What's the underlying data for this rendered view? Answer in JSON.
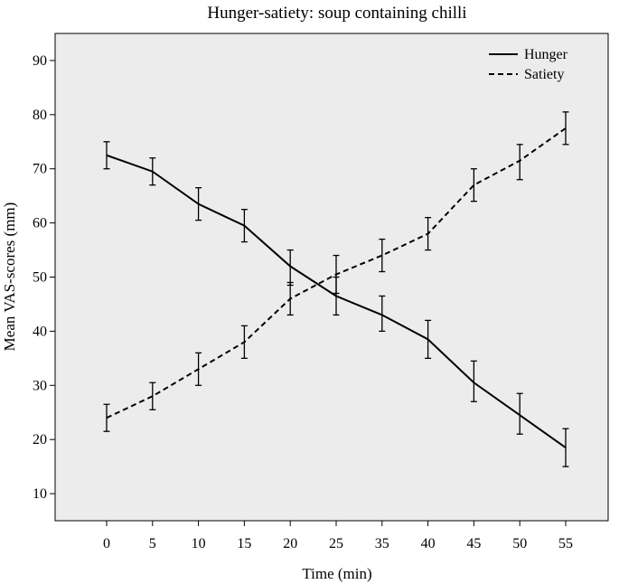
{
  "chart_data": {
    "type": "line",
    "title": "Hunger-satiety: soup containing chilli",
    "xlabel": "Time (min)",
    "ylabel": "Mean VAS-scores (mm)",
    "categories": [
      "0",
      "5",
      "10",
      "15",
      "20",
      "25",
      "35",
      "40",
      "45",
      "50",
      "55"
    ],
    "y_ticks": [
      10,
      20,
      30,
      40,
      50,
      60,
      70,
      80,
      90
    ],
    "ylim": [
      5,
      95
    ],
    "grid": false,
    "legend_position": "top-right",
    "background_color": "#ececec",
    "series": [
      {
        "name": "Hunger",
        "line_style": "solid",
        "values": [
          72.5,
          69.5,
          63.5,
          59.5,
          52,
          46.5,
          43,
          38.5,
          30.5,
          24.5,
          18.5
        ],
        "error_low": [
          70,
          67,
          60.5,
          56.5,
          48.5,
          43,
          40,
          35,
          27,
          21,
          15
        ],
        "error_high": [
          75,
          72,
          66.5,
          62.5,
          55,
          50,
          46.5,
          42,
          34.5,
          28.5,
          22
        ]
      },
      {
        "name": "Satiety",
        "line_style": "dashed",
        "values": [
          24,
          28,
          33,
          38,
          46,
          50.5,
          54,
          58,
          67,
          71.5,
          77.5
        ],
        "error_low": [
          21.5,
          25.5,
          30,
          35,
          43,
          47,
          51,
          55,
          64,
          68,
          74.5
        ],
        "error_high": [
          26.5,
          30.5,
          36,
          41,
          49,
          54,
          57,
          61,
          70,
          74.5,
          80.5
        ]
      }
    ]
  }
}
